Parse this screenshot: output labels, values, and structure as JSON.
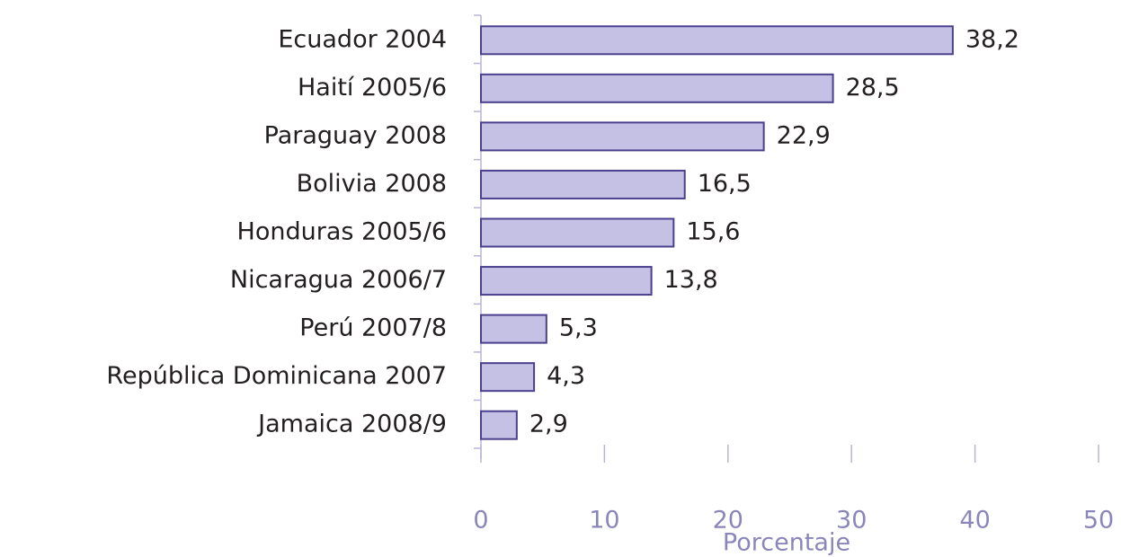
{
  "chart_data": {
    "type": "barh",
    "categories": [
      "Ecuador 2004",
      "Haití 2005/6",
      "Paraguay 2008",
      "Bolivia 2008",
      "Honduras 2005/6",
      "Nicaragua 2006/7",
      "Perú 2007/8",
      "República Dominicana 2007",
      "Jamaica 2008/9"
    ],
    "values": [
      38.2,
      28.5,
      22.9,
      16.5,
      15.6,
      13.8,
      5.3,
      4.3,
      2.9
    ],
    "value_labels": [
      "38,2",
      "28,5",
      "22,9",
      "16,5",
      "15,6",
      "13,8",
      "5,3",
      "4,3",
      "2,9"
    ],
    "color": "#c5c1e5",
    "xlabel": "Porcentaje",
    "xlim": [
      0,
      50
    ],
    "xticks": [
      0,
      10,
      20,
      30,
      40,
      50
    ]
  }
}
